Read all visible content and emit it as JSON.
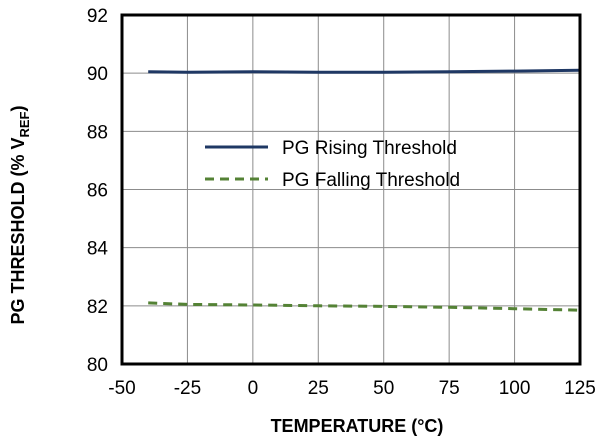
{
  "chart_data": {
    "type": "line",
    "title": "",
    "xlabel": "TEMPERATURE   (°C)",
    "ylabel_main": "PG THRESHOLD   (% V",
    "ylabel_sub": "REF",
    "ylabel_close": ")",
    "xlim": [
      -50,
      125
    ],
    "ylim": [
      80,
      92
    ],
    "xticks": [
      -50,
      -25,
      0,
      25,
      50,
      75,
      100,
      125
    ],
    "yticks": [
      80,
      82,
      84,
      86,
      88,
      90,
      92
    ],
    "grid": true,
    "legend_position": "center",
    "series": [
      {
        "name": "PG Rising Threshold",
        "color": "#1f3864",
        "dash": "solid",
        "x": [
          -40,
          -25,
          0,
          25,
          50,
          75,
          100,
          125
        ],
        "y": [
          90.05,
          90.03,
          90.05,
          90.03,
          90.03,
          90.05,
          90.07,
          90.1
        ]
      },
      {
        "name": "PG Falling Threshold",
        "color": "#548235",
        "dash": "dashed",
        "x": [
          -40,
          -25,
          0,
          25,
          50,
          75,
          100,
          125
        ],
        "y": [
          82.1,
          82.05,
          82.03,
          82.0,
          81.98,
          81.95,
          81.9,
          81.85
        ]
      }
    ]
  }
}
